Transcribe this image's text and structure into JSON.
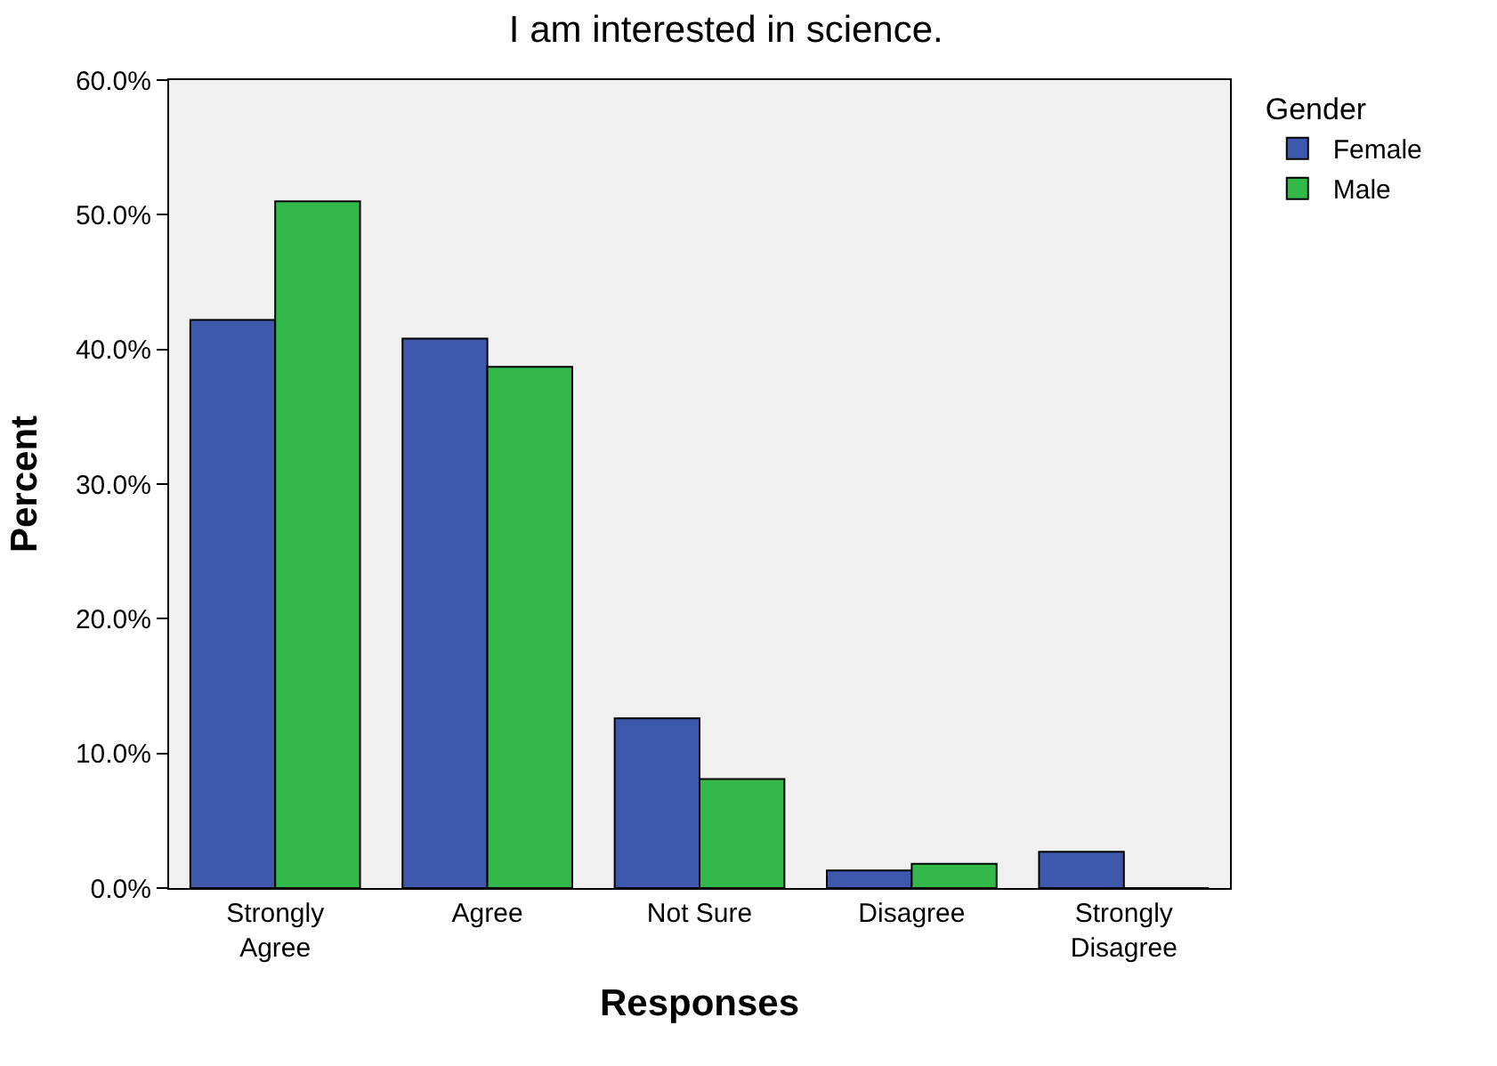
{
  "chart_data": {
    "type": "bar",
    "title": "I am interested in science.",
    "xlabel": "Responses",
    "ylabel": "Percent",
    "legend_title": "Gender",
    "categories": [
      "Strongly\nAgree",
      "Agree",
      "Not Sure",
      "Disagree",
      "Strongly\nDisagree"
    ],
    "series": [
      {
        "name": "Female",
        "color": "#3e58ac",
        "values": [
          42.2,
          40.8,
          12.6,
          1.3,
          2.7
        ]
      },
      {
        "name": "Male",
        "color": "#33b84a",
        "values": [
          51.0,
          38.7,
          8.1,
          1.8,
          0.0
        ]
      }
    ],
    "ylim": [
      0,
      60
    ],
    "yticks": [
      {
        "value": 0,
        "label": "0.0%"
      },
      {
        "value": 10,
        "label": "10.0%"
      },
      {
        "value": 20,
        "label": "20.0%"
      },
      {
        "value": 30,
        "label": "30.0%"
      },
      {
        "value": 40,
        "label": "40.0%"
      },
      {
        "value": 50,
        "label": "50.0%"
      },
      {
        "value": 60,
        "label": "60.0%"
      }
    ],
    "grid": false,
    "legend": "top right"
  }
}
